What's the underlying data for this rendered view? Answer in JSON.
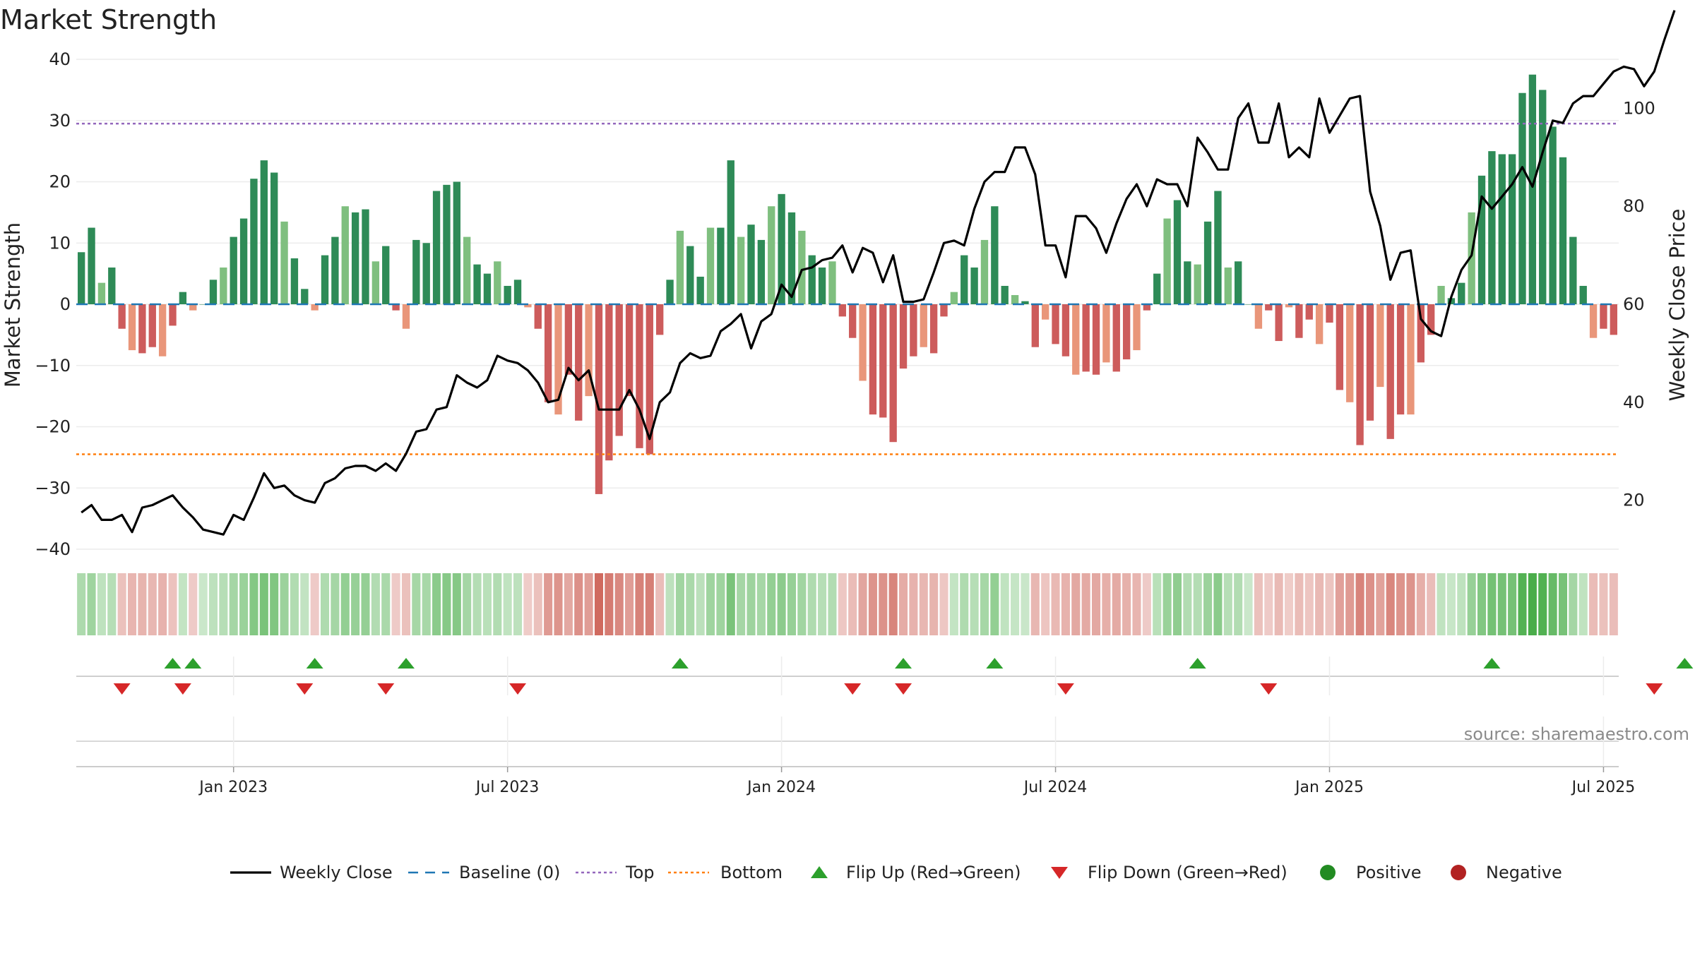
{
  "title": "Market Strength",
  "source": "source: sharemaestro.com",
  "colors": {
    "strong_green": "#2e8b57",
    "light_green": "#7fbf7f",
    "strong_red": "#cd5c5c",
    "light_red": "#e9967a",
    "close_line": "#000000",
    "baseline": "#1f77b4",
    "top": "#9467bd",
    "bottom": "#ff7f0e",
    "flip_up": "#2ca02c",
    "flip_down": "#d62728",
    "positive": "#228b22",
    "negative": "#b22222"
  },
  "chart_data": {
    "type": "bar",
    "title": "Market Strength",
    "ylabel": "Market Strength",
    "y2label": "Weekly Close Price",
    "ylim": [
      -40,
      40
    ],
    "y2lim": [
      10,
      110
    ],
    "yticks": [
      40,
      30,
      20,
      10,
      0,
      -10,
      -20,
      -30,
      -40
    ],
    "y2ticks": [
      100,
      80,
      60,
      40,
      20
    ],
    "top_line": 29.5,
    "bottom_line": -24.5,
    "x_labels": [
      "Jan 2023",
      "Jul 2023",
      "Jan 2024",
      "Jul 2024",
      "Jan 2025",
      "Jul 2025"
    ],
    "x_label_index": [
      15,
      42,
      69,
      96,
      123,
      150
    ],
    "strength": [
      8.5,
      12.5,
      3.5,
      6,
      -4,
      -7.5,
      -8,
      -7,
      -8.5,
      -3.5,
      2,
      -1,
      0,
      4,
      6,
      11,
      14,
      20.5,
      23.5,
      21.5,
      13.5,
      7.5,
      2.5,
      -1,
      8,
      11,
      16,
      15,
      15.5,
      7,
      9.5,
      -1,
      -4,
      10.5,
      10,
      18.5,
      19.5,
      20,
      11,
      6.5,
      5,
      7,
      3,
      4,
      -0.5,
      -4,
      -16,
      -18,
      -11.5,
      -19,
      -15,
      -31,
      -25.5,
      -21.5,
      -15,
      -23.5,
      -24.5,
      -5,
      4,
      12,
      9.5,
      4.5,
      12.5,
      12.5,
      23.5,
      11,
      13,
      10.5,
      16,
      18,
      15,
      12,
      8,
      6,
      7,
      -2,
      -5.5,
      -12.5,
      -18,
      -18.5,
      -22.5,
      -10.5,
      -8.5,
      -7,
      -8,
      -2,
      2,
      8,
      6,
      10.5,
      16,
      3,
      1.5,
      0.5,
      -7,
      -2.5,
      -6.5,
      -8.5,
      -11.5,
      -11,
      -11.5,
      -9.5,
      -11,
      -9,
      -7.5,
      -1,
      5,
      14,
      17,
      7,
      6.5,
      13.5,
      18.5,
      6,
      7,
      0,
      -4,
      -1,
      -6,
      -0.5,
      -5.5,
      -2.5,
      -6.5,
      -3,
      -14,
      -16,
      -23,
      -19,
      -13.5,
      -22,
      -18,
      -18,
      -9.5,
      -5,
      3,
      1,
      3.5,
      15,
      21,
      25,
      24.5,
      24.5,
      34.5,
      37.5,
      35,
      29,
      24,
      11,
      3,
      -5.5,
      -4,
      -5
    ],
    "weekly_close": [
      17.5,
      19,
      16,
      16,
      17,
      13.5,
      18.5,
      19,
      20,
      21,
      18.5,
      16.5,
      14,
      13.5,
      13,
      17,
      16,
      20.5,
      25.5,
      22.5,
      23,
      21,
      20,
      19.5,
      23.5,
      24.5,
      26.5,
      27,
      27,
      26,
      27.5,
      26,
      29.5,
      34,
      34.5,
      38.5,
      39,
      45.5,
      44,
      43,
      44.5,
      49.5,
      48.5,
      48,
      46.5,
      44,
      40,
      40.5,
      47,
      44.5,
      46.5,
      38.5,
      38.5,
      38.5,
      42.5,
      38.5,
      32.5,
      40,
      42,
      48,
      50,
      49,
      49.5,
      54.5,
      56,
      58,
      51,
      56.5,
      58,
      64,
      61.5,
      67,
      67.5,
      69,
      69.5,
      72,
      66.5,
      71.5,
      70.5,
      64.5,
      70,
      60.5,
      60.5,
      61,
      66.5,
      72.5,
      73,
      72,
      79.5,
      85,
      87,
      87,
      92,
      92,
      86.5,
      72,
      72,
      65.5,
      78,
      78,
      75.5,
      70.5,
      76.5,
      81.5,
      84.5,
      80,
      85.5,
      84.5,
      84.5,
      80,
      94,
      91,
      87.5,
      87.5,
      98,
      101,
      93,
      93,
      101,
      90,
      92,
      90,
      102,
      95,
      98.5,
      102,
      102.5,
      83,
      76,
      65,
      70.5,
      71,
      57,
      54.5,
      53.5,
      61.5,
      67,
      70,
      82,
      79.5,
      82,
      84.5,
      88,
      84,
      91,
      97.5,
      97,
      101,
      102.5,
      102.5,
      105,
      107.5,
      108.5,
      108,
      104.5,
      107.5,
      114,
      120
    ],
    "flip_up_index": [
      9,
      11,
      23,
      32,
      59,
      81,
      90,
      110,
      139,
      158
    ],
    "flip_down_index": [
      4,
      10,
      22,
      30,
      43,
      76,
      81,
      97,
      117,
      155
    ],
    "legend": [
      "Weekly Close",
      "Baseline (0)",
      "Top",
      "Bottom",
      "Flip Up (Red→Green)",
      "Flip Down (Green→Red)",
      "Positive",
      "Negative"
    ],
    "legend_placement": "bottom-center"
  }
}
